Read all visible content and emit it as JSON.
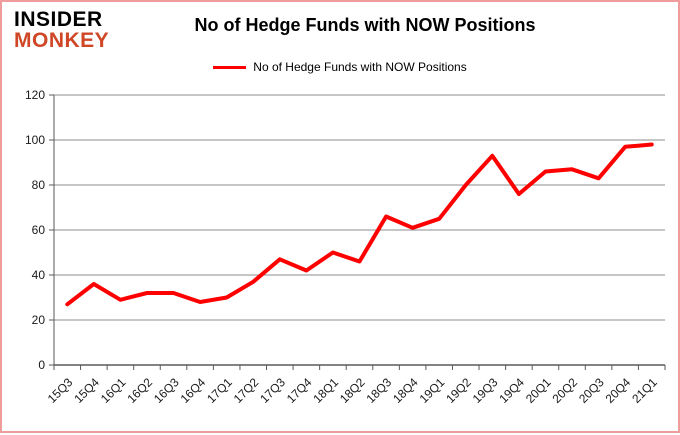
{
  "logo": {
    "line1": "INSIDER",
    "line2": "MONKEY",
    "line2_color": "#cf4727"
  },
  "header": {
    "title": "No of Hedge Funds with NOW Positions"
  },
  "legend": {
    "label": "No of Hedge Funds with NOW Positions",
    "line_color": "#ff0000"
  },
  "colors": {
    "series_line": "#ff0000",
    "gridline": "#8c8c8c",
    "axis": "#5a5a5a",
    "border": "#ee9c9c",
    "background": "#ffffff"
  },
  "chart_data": {
    "type": "line",
    "title": "No of Hedge Funds with NOW Positions",
    "categories": [
      "15Q3",
      "15Q4",
      "16Q1",
      "16Q2",
      "16Q3",
      "16Q4",
      "17Q1",
      "17Q2",
      "17Q3",
      "17Q4",
      "18Q1",
      "18Q2",
      "18Q3",
      "18Q4",
      "19Q1",
      "19Q2",
      "19Q3",
      "19Q4",
      "20Q1",
      "20Q2",
      "20Q3",
      "20Q4",
      "21Q1"
    ],
    "series": [
      {
        "name": "No of Hedge Funds with NOW Positions",
        "color": "#ff0000",
        "values": [
          27,
          36,
          29,
          32,
          32,
          28,
          30,
          37,
          47,
          42,
          50,
          46,
          66,
          61,
          65,
          80,
          93,
          76,
          86,
          87,
          83,
          97,
          98
        ]
      }
    ],
    "xlabel": "",
    "ylabel": "",
    "ylim": [
      0,
      120
    ],
    "ytick_step": 20,
    "yticks": [
      0,
      20,
      40,
      60,
      80,
      100,
      120
    ],
    "grid": true,
    "legend_position": "top-center",
    "markers": false
  }
}
